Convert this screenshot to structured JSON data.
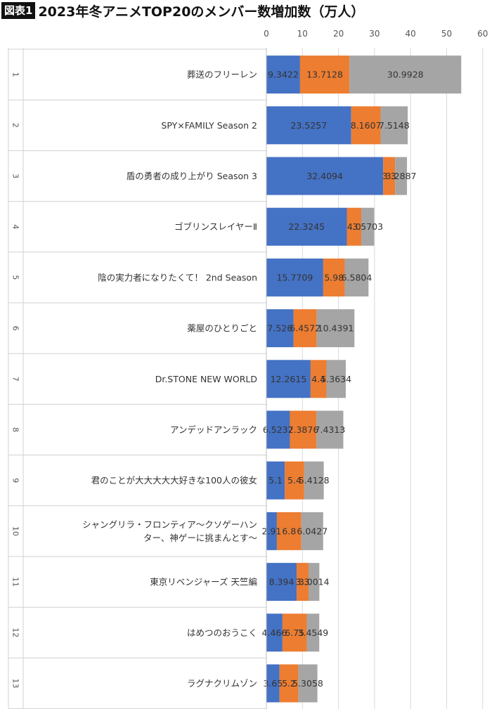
{
  "header": {
    "badge": "図表1",
    "title": "2023年冬アニメTOP20のメンバー数増加数（万人）"
  },
  "chart_data": {
    "type": "bar",
    "orientation": "horizontal",
    "stacked": true,
    "title": "2023年冬アニメTOP20のメンバー数増加数（万人）",
    "xlim": [
      0,
      60
    ],
    "xticks": [
      0,
      10,
      20,
      30,
      40,
      50,
      60
    ],
    "grid": true,
    "categories": [
      {
        "rank": "1",
        "name": [
          "葬送のフリーレン"
        ]
      },
      {
        "rank": "2",
        "name": [
          "SPY×FAMILY Season 2"
        ]
      },
      {
        "rank": "3",
        "name": [
          "盾の勇者の成り上がり Season 3"
        ]
      },
      {
        "rank": "4",
        "name": [
          "ゴブリンスレイヤーⅡ"
        ]
      },
      {
        "rank": "5",
        "name": [
          "陰の実力者になりたくて！ 2nd Season"
        ]
      },
      {
        "rank": "6",
        "name": [
          "薬屋のひとりごと"
        ]
      },
      {
        "rank": "7",
        "name": [
          "Dr.STONE NEW WORLD"
        ]
      },
      {
        "rank": "8",
        "name": [
          "アンデッドアンラック"
        ]
      },
      {
        "rank": "9",
        "name": [
          "君のことが大大大大大好きな100人の彼女"
        ]
      },
      {
        "rank": "10",
        "name": [
          "シャングリラ・フロンティア〜クソゲーハン",
          "ター、神ゲーに挑まんとす〜"
        ]
      },
      {
        "rank": "11",
        "name": [
          "東京リベンジャーズ 天竺編"
        ]
      },
      {
        "rank": "12",
        "name": [
          "はめつのおうこく"
        ]
      },
      {
        "rank": "13",
        "name": [
          "ラグナクリムゾン"
        ]
      }
    ],
    "series": [
      {
        "color": "#4472C4",
        "values": [
          9.3422,
          23.5257,
          32.4094,
          22.3245,
          15.7709,
          7.526,
          12.2615,
          6.5232,
          5.1,
          2.91,
          8.394,
          4.466,
          3.65
        ],
        "labels": [
          "9.3422",
          "23.5257",
          "32.4094",
          "22.3245",
          "15.7709",
          "7.526",
          "12.2615",
          "6.5232",
          "5.1",
          "2.91",
          "8.394",
          "4.466",
          "3.65"
        ]
      },
      {
        "color": "#ED7D31",
        "values": [
          13.7128,
          8.1607,
          3.3,
          4.0,
          5.98,
          6.4572,
          4.4,
          7.3876,
          5.4,
          6.8,
          3.3,
          6.75,
          5.2
        ],
        "labels": [
          "13.7128",
          "8.1607",
          "3.3",
          "4.0",
          "5.98",
          "6.4572",
          "4.4",
          "7.3876",
          "5.4",
          "6.8",
          "3.3",
          "6.75",
          "5.2"
        ]
      },
      {
        "color": "#A5A5A5",
        "values": [
          30.9928,
          7.5148,
          3.2887,
          3.5703,
          6.5804,
          10.4391,
          5.3634,
          7.4313,
          5.4128,
          6.0427,
          3.0014,
          3.4549,
          5.3058
        ],
        "labels": [
          "30.9928",
          "7.5148",
          "3.2887",
          "3.5703",
          "6.5804",
          "10.4391",
          "5.3634",
          "7.4313",
          "5.4128",
          "6.0427",
          "3.0014",
          "3.4549",
          "5.3058"
        ]
      }
    ]
  }
}
